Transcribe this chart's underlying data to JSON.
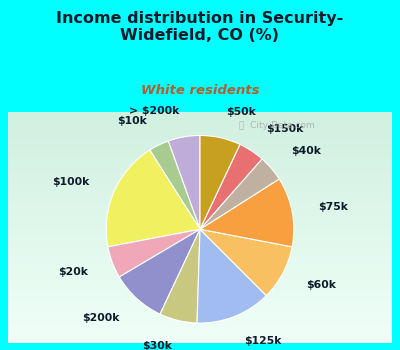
{
  "title": "Income distribution in Security-\nWidefield, CO (%)",
  "subtitle": "White residents",
  "title_color": "#0d1b2a",
  "subtitle_color": "#b06030",
  "bg_cyan": "#00ffff",
  "bg_panel_top": "#e8f8f0",
  "bg_panel_bottom": "#c8eed8",
  "labels": [
    "> $200k",
    "$10k",
    "$100k",
    "$20k",
    "$200k",
    "$30k",
    "$125k",
    "$60k",
    "$75k",
    "$40k",
    "$150k",
    "$50k"
  ],
  "values": [
    5.5,
    3.5,
    19.0,
    5.5,
    9.5,
    6.5,
    13.0,
    9.5,
    12.0,
    4.5,
    4.5,
    7.0
  ],
  "colors": [
    "#c0acd8",
    "#a8cc90",
    "#f0f060",
    "#f0a8b8",
    "#9090cc",
    "#c8c880",
    "#a0bcf0",
    "#f8c060",
    "#f8a040",
    "#c0b0a0",
    "#e87070",
    "#c8a020"
  ],
  "label_fontsize": 7.8,
  "startangle": 90,
  "watermark": "ⓘ  City-Data.com"
}
